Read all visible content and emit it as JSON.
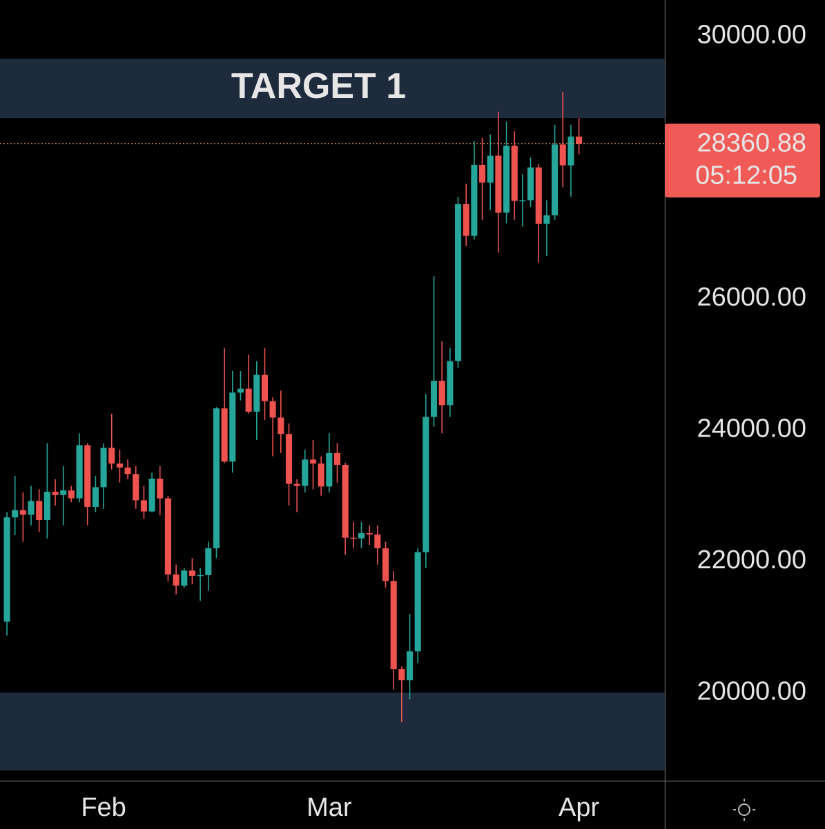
{
  "chart_data": {
    "type": "candlestick",
    "up_color": "#26a69a",
    "down_color": "#ef5350",
    "open": [
      21080,
      22670,
      22780,
      22710,
      22920,
      22630,
      23060,
      23010,
      23080,
      22960,
      23770,
      22830,
      23130,
      23730,
      23490,
      23430,
      23330,
      22930,
      22760,
      23260,
      22960,
      21800,
      21630,
      21860,
      21780,
      21790,
      22200,
      24330,
      23520,
      24570,
      24630,
      24280,
      24840,
      24440,
      24190,
      23940,
      23180,
      23150,
      23550,
      23490,
      23140,
      23650,
      23470,
      22360,
      22350,
      22430,
      22410,
      22200,
      21700,
      20360,
      20190,
      20630,
      22140,
      24200,
      24750,
      24380,
      25050,
      27440,
      26960,
      28040,
      27770,
      28180,
      27310,
      28330,
      27490,
      27500,
      28000,
      27140,
      27270,
      28350,
      28030,
      28470
    ],
    "high": [
      22750,
      23300,
      23050,
      23150,
      23100,
      23800,
      23250,
      23450,
      23150,
      23950,
      23800,
      23300,
      23800,
      24250,
      23700,
      23550,
      23450,
      23150,
      23350,
      23450,
      23000,
      21950,
      21900,
      22050,
      21900,
      22300,
      24350,
      25250,
      24900,
      24900,
      25150,
      25050,
      25250,
      24500,
      24600,
      24100,
      23250,
      23700,
      23850,
      23600,
      23950,
      23800,
      23500,
      22600,
      22600,
      22550,
      22550,
      22300,
      21850,
      20400,
      21200,
      22200,
      24550,
      26350,
      25350,
      25250,
      27550,
      27750,
      28400,
      28450,
      28500,
      28850,
      28700,
      28550,
      27900,
      28150,
      28050,
      27500,
      28650,
      29150,
      28650,
      28750
    ],
    "low": [
      20870,
      22400,
      22300,
      22550,
      22450,
      22350,
      22850,
      22550,
      22900,
      22900,
      22550,
      22750,
      22800,
      23400,
      23200,
      23250,
      22800,
      22650,
      22750,
      22700,
      21700,
      21500,
      21600,
      21650,
      21400,
      21550,
      22050,
      23500,
      23350,
      24450,
      24250,
      23850,
      24150,
      23600,
      23650,
      22850,
      22750,
      23050,
      23100,
      23000,
      23050,
      23200,
      22100,
      22200,
      22200,
      22250,
      21950,
      21600,
      20050,
      19550,
      19900,
      20450,
      21900,
      24050,
      23950,
      24200,
      24950,
      26800,
      26900,
      27200,
      27350,
      26700,
      27150,
      27200,
      27100,
      27400,
      26550,
      26650,
      27200,
      27700,
      27550,
      28200
    ],
    "close": [
      22670,
      22780,
      22710,
      22920,
      22630,
      23060,
      23010,
      23080,
      22960,
      23770,
      22830,
      23130,
      23730,
      23490,
      23430,
      23330,
      22930,
      22760,
      23260,
      22960,
      21800,
      21630,
      21860,
      21780,
      21790,
      22200,
      24330,
      23520,
      24570,
      24630,
      24280,
      24840,
      24440,
      24190,
      23940,
      23180,
      23150,
      23550,
      23490,
      23140,
      23650,
      23470,
      22360,
      22350,
      22430,
      22410,
      22200,
      21700,
      20360,
      20190,
      20630,
      22140,
      24200,
      24750,
      24380,
      25050,
      27440,
      26960,
      28040,
      27770,
      28180,
      27310,
      28330,
      27490,
      27500,
      28000,
      27140,
      27270,
      28350,
      28030,
      28470,
      28360.88
    ],
    "xlim": [
      -0.86,
      81.66
    ],
    "xticks": [
      {
        "value": 12,
        "label": "Feb"
      },
      {
        "value": 40,
        "label": "Mar"
      },
      {
        "value": 71,
        "label": "Apr"
      }
    ],
    "ylim": [
      18680,
      30550
    ],
    "yticks": [
      {
        "value": 20000,
        "label": "20000.00"
      },
      {
        "value": 22000,
        "label": "22000.00"
      },
      {
        "value": 24000,
        "label": "24000.00"
      },
      {
        "value": 26000,
        "label": "26000.00"
      },
      {
        "value": 30000,
        "label": "30000.00"
      }
    ],
    "countdown": "05:12:05",
    "zones": [
      {
        "label": "TARGET 1",
        "range": [
          28751,
          29654
        ],
        "color": "#1e2b3c"
      },
      {
        "range": [
          18813,
          20000
        ],
        "color": "#1e2b3c"
      }
    ],
    "price_label_color": "#f05a57",
    "price_line_color": "#e8955a"
  }
}
